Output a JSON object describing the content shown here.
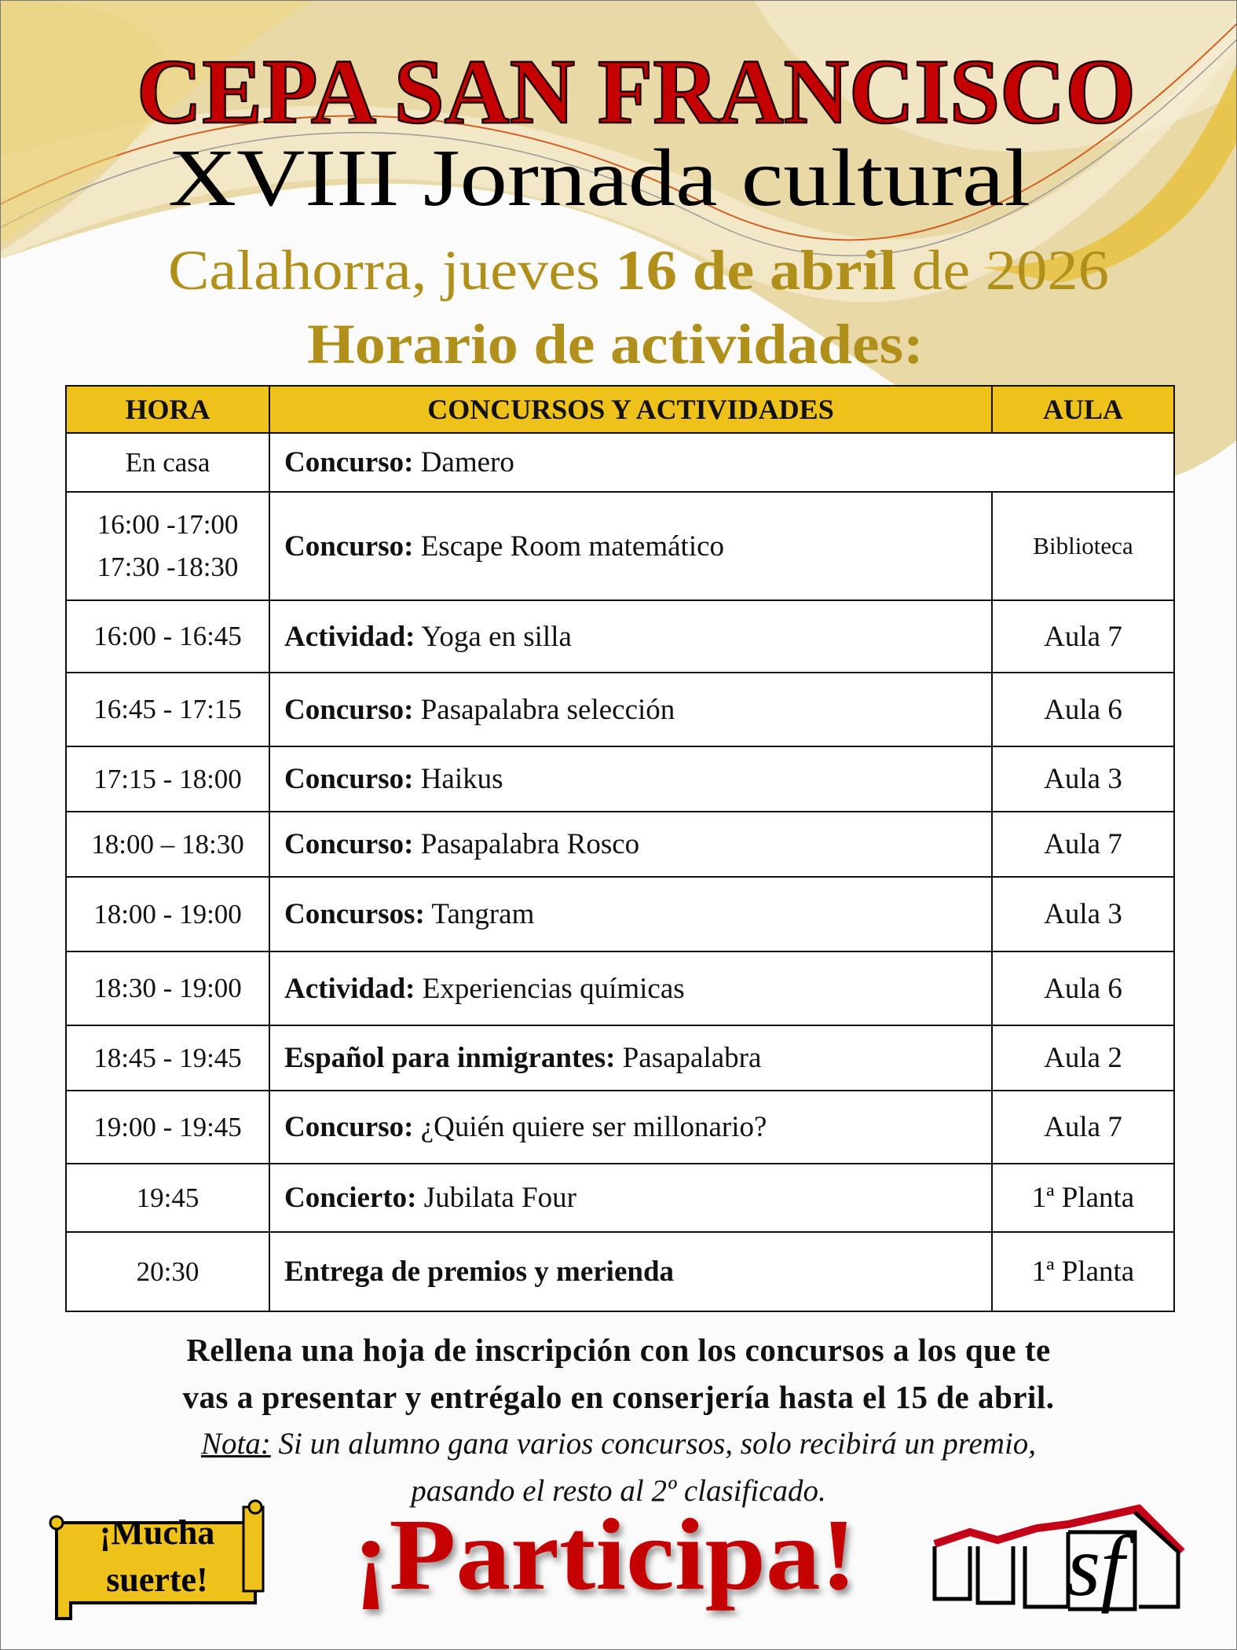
{
  "header": {
    "school": "CEPA SAN FRANCISCO",
    "event": "XVIII Jornada cultural",
    "date_prefix": "Calahorra, jueves ",
    "date_bold": "16 de abril",
    "date_suffix": " de 2026",
    "schedule_title": "Horario de actividades:"
  },
  "colors": {
    "title_red": "#c40000",
    "gold": "#b0901a",
    "header_fill": "#eec21a"
  },
  "table": {
    "columns": [
      "HORA",
      "CONCURSOS Y ACTIVIDADES",
      "AULA"
    ],
    "rows": [
      {
        "time": "En casa",
        "label": "Concurso:",
        "activity": " Damero",
        "room": ""
      },
      {
        "time": "16:00 -17:00",
        "time2": "17:30 -18:30",
        "label": "Concurso:",
        "activity": " Escape Room matemático",
        "room": "Biblioteca"
      },
      {
        "time": "16:00 - 16:45",
        "label": "Actividad:",
        "activity": " Yoga en silla",
        "room": "Aula 7"
      },
      {
        "time": "16:45 - 17:15",
        "label": "Concurso:",
        "activity": " Pasapalabra selección",
        "room": "Aula 6"
      },
      {
        "time": "17:15 - 18:00",
        "label": "Concurso:",
        "activity": " Haikus",
        "room": "Aula 3"
      },
      {
        "time": "18:00 – 18:30",
        "label": "Concurso:",
        "activity": " Pasapalabra Rosco",
        "room": "Aula 7"
      },
      {
        "time": "18:00 - 19:00",
        "label": "Concursos:",
        "activity": " Tangram",
        "room": "Aula 3"
      },
      {
        "time": "18:30 - 19:00",
        "label": "Actividad:",
        "activity": " Experiencias químicas",
        "room": "Aula 6"
      },
      {
        "time": "18:45 - 19:45",
        "label": "Español para inmigrantes:",
        "activity": " Pasapalabra",
        "room": "Aula 2"
      },
      {
        "time": "19:00 - 19:45",
        "label": "Concurso:",
        "activity": " ¿Quién quiere ser millonario?",
        "room": "Aula 7"
      },
      {
        "time": "19:45",
        "label": "Concierto:",
        "activity": " Jubilata Four",
        "room": "1ª Planta"
      },
      {
        "time": "20:30",
        "label": "Entrega de premios y merienda",
        "activity": "",
        "room": "1ª Planta"
      }
    ]
  },
  "footer": {
    "instructions_1": "Rellena una hoja de inscripción con los concursos a los que te",
    "instructions_2": "vas a presentar y entrégalo en conserjería hasta el 15 de abril.",
    "note_label": "Nota:",
    "note_1": " Si un alumno gana varios concursos, solo recibirá un premio,",
    "note_2": "pasando el resto al 2º clasificado.",
    "scroll_1": "¡Mucha",
    "scroll_2": "suerte!",
    "cta": "¡Participa!",
    "logo_text": "sf"
  }
}
